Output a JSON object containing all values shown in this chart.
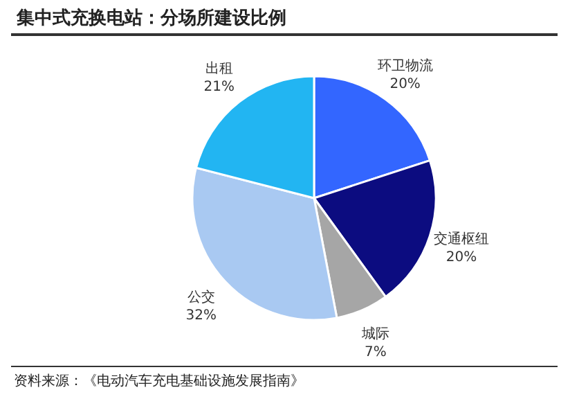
{
  "chart_data": {
    "type": "pie",
    "title": "集中式充换电站：分场所建设比例",
    "categories": [
      "环卫物流",
      "交通枢纽",
      "城际",
      "公交",
      "出租"
    ],
    "values": [
      20,
      20,
      7,
      32,
      21
    ],
    "value_labels": [
      "20%",
      "20%",
      "7%",
      "32%",
      "21%"
    ],
    "colors": [
      "#3366ff",
      "#0c0c80",
      "#a6a6a6",
      "#a9c9f2",
      "#22b5f2"
    ],
    "annotations": [
      "资料来源：《电动汽车充电基础设施发展指南》"
    ]
  }
}
